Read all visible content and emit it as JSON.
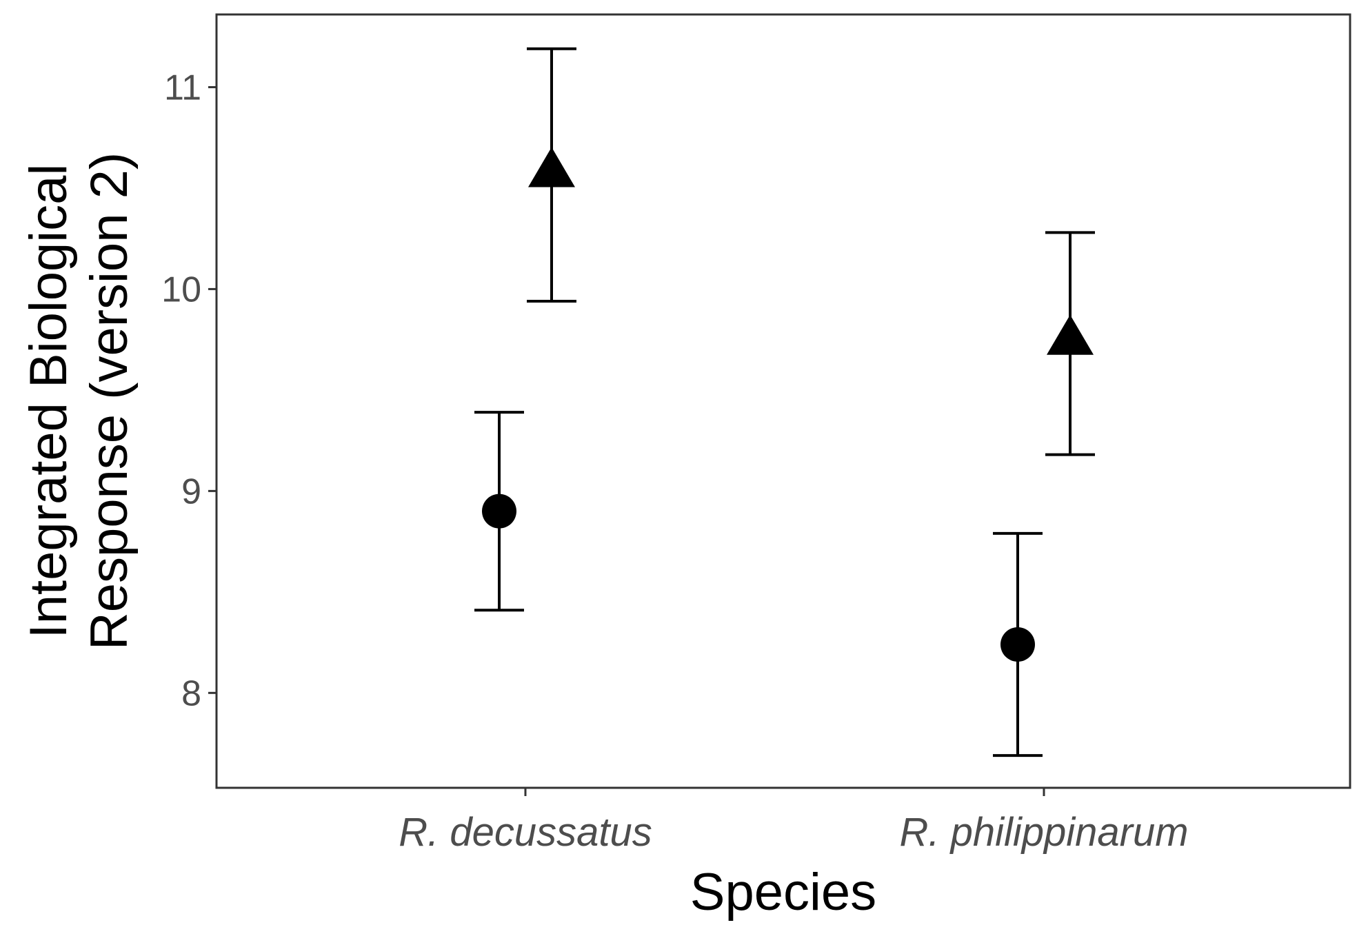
{
  "chart_data": {
    "type": "scatter",
    "xlabel": "Species",
    "ylabel_lines": [
      "Integrated Biological",
      "Response (version 2)"
    ],
    "categories": [
      "R. decussatus",
      "R. philippinarum"
    ],
    "ylim": [
      7.53,
      11.36
    ],
    "yticks": [
      8,
      9,
      10,
      11
    ],
    "grid": false,
    "series": [
      {
        "marker": "circle",
        "values": [
          8.9,
          8.24
        ],
        "lower": [
          8.41,
          7.69
        ],
        "upper": [
          9.39,
          8.79
        ]
      },
      {
        "marker": "triangle",
        "values": [
          10.58,
          9.75
        ],
        "lower": [
          9.94,
          9.18
        ],
        "upper": [
          11.19,
          10.28
        ]
      }
    ]
  }
}
